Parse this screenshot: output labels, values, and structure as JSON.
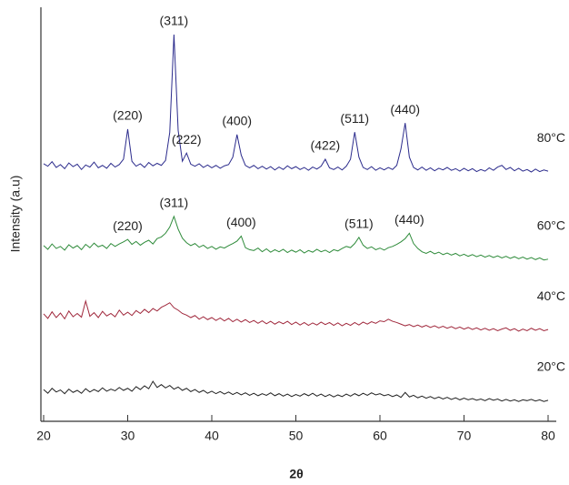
{
  "chart_data": {
    "type": "line",
    "x_label": "2θ",
    "y_label": "Intensity (a.u)",
    "xlim": [
      20,
      80
    ],
    "xticks": [
      20,
      30,
      40,
      50,
      60,
      70,
      80
    ],
    "ylim": [
      0,
      100
    ],
    "x": [
      20,
      20.5,
      21,
      21.5,
      22,
      22.5,
      23,
      23.5,
      24,
      24.5,
      25,
      25.5,
      26,
      26.5,
      27,
      27.5,
      28,
      28.5,
      29,
      29.5,
      30,
      30.5,
      31,
      31.5,
      32,
      32.5,
      33,
      33.5,
      34,
      34.5,
      35,
      35.5,
      36,
      36.5,
      37,
      37.5,
      38,
      38.5,
      39,
      39.5,
      40,
      40.5,
      41,
      41.5,
      42,
      42.5,
      43,
      43.5,
      44,
      44.5,
      45,
      45.5,
      46,
      46.5,
      47,
      47.5,
      48,
      48.5,
      49,
      49.5,
      50,
      50.5,
      51,
      51.5,
      52,
      52.5,
      53,
      53.5,
      54,
      54.5,
      55,
      55.5,
      56,
      56.5,
      57,
      57.5,
      58,
      58.5,
      59,
      59.5,
      60,
      60.5,
      61,
      61.5,
      62,
      62.5,
      63,
      63.5,
      64,
      64.5,
      65,
      65.5,
      66,
      66.5,
      67,
      67.5,
      68,
      68.5,
      69,
      69.5,
      70,
      70.5,
      71,
      71.5,
      72,
      72.5,
      73,
      73.5,
      74,
      74.5,
      75,
      75.5,
      76,
      76.5,
      77,
      77.5,
      78,
      78.5,
      79,
      79.5,
      80
    ],
    "series": [
      {
        "name": "80°C",
        "color": "#2b2b8c",
        "values": [
          62.4,
          61.8,
          62.9,
          61.5,
          62.2,
          61.2,
          62.6,
          61.7,
          62.3,
          61.0,
          62.1,
          61.6,
          62.8,
          61.4,
          62.0,
          61.3,
          62.5,
          61.6,
          62.2,
          63.5,
          70.8,
          63.0,
          61.8,
          62.4,
          61.5,
          62.7,
          61.9,
          62.5,
          62.0,
          63.2,
          70.0,
          93.8,
          70.5,
          63.0,
          65.0,
          62.3,
          61.8,
          62.4,
          61.5,
          62.1,
          61.4,
          62.0,
          61.3,
          61.9,
          62.2,
          64.0,
          69.5,
          64.5,
          62.0,
          61.4,
          62.0,
          61.2,
          61.8,
          61.1,
          61.7,
          60.9,
          61.6,
          61.0,
          61.9,
          61.2,
          61.7,
          61.0,
          61.5,
          60.8,
          61.6,
          61.1,
          61.8,
          63.5,
          61.4,
          61.0,
          61.6,
          60.9,
          61.8,
          63.5,
          70.1,
          64.0,
          61.5,
          61.0,
          61.7,
          60.8,
          61.4,
          60.9,
          61.5,
          61.0,
          62.0,
          66.0,
          72.3,
          64.0,
          61.5,
          60.9,
          61.6,
          60.8,
          61.4,
          60.7,
          61.3,
          60.9,
          61.5,
          60.8,
          61.2,
          60.6,
          61.3,
          60.7,
          61.2,
          60.5,
          61.0,
          60.6,
          61.4,
          60.8,
          61.6,
          62.0,
          61.0,
          61.5,
          60.7,
          61.3,
          60.6,
          61.0,
          60.4,
          61.1,
          60.5,
          60.9,
          60.6
        ],
        "peak_labels": [
          {
            "label": "(220)",
            "x": 30
          },
          {
            "label": "(311)",
            "x": 35.5
          },
          {
            "label": "(222)",
            "x": 37
          },
          {
            "label": "(400)",
            "x": 43
          },
          {
            "label": "(422)",
            "x": 53.5
          },
          {
            "label": "(511)",
            "x": 57
          },
          {
            "label": "(440)",
            "x": 63
          }
        ]
      },
      {
        "name": "60°C",
        "color": "#2e8b3a",
        "values": [
          42.5,
          41.6,
          42.9,
          41.8,
          42.3,
          41.4,
          42.7,
          41.9,
          42.5,
          41.5,
          42.8,
          42.0,
          43.1,
          42.2,
          42.6,
          41.8,
          43.0,
          42.3,
          42.9,
          43.4,
          44.0,
          42.8,
          43.5,
          42.6,
          43.3,
          43.8,
          42.9,
          44.2,
          44.6,
          45.5,
          47.0,
          49.6,
          46.5,
          44.3,
          43.2,
          42.5,
          43.0,
          42.1,
          42.6,
          41.8,
          42.3,
          41.6,
          42.2,
          41.9,
          42.5,
          43.0,
          43.6,
          44.8,
          42.0,
          41.5,
          41.3,
          41.9,
          41.0,
          41.7,
          40.9,
          41.5,
          41.0,
          41.6,
          40.8,
          41.4,
          40.9,
          41.5,
          40.7,
          41.3,
          40.9,
          41.6,
          41.0,
          41.4,
          40.8,
          41.5,
          41.2,
          41.8,
          42.3,
          42.0,
          43.0,
          44.5,
          42.6,
          41.8,
          42.2,
          41.5,
          41.9,
          41.4,
          42.0,
          42.3,
          42.8,
          43.4,
          44.2,
          45.5,
          43.0,
          41.8,
          41.0,
          40.6,
          41.1,
          40.5,
          40.9,
          40.3,
          40.7,
          40.2,
          40.6,
          40.0,
          40.4,
          39.9,
          40.3,
          39.8,
          40.2,
          39.7,
          40.1,
          39.6,
          40.0,
          39.5,
          39.9,
          39.4,
          39.8,
          39.3,
          39.7,
          39.2,
          39.6,
          39.1,
          39.5,
          39.0,
          39.2
        ],
        "peak_labels": [
          {
            "label": "(220)",
            "x": 30
          },
          {
            "label": "(311)",
            "x": 35.5
          },
          {
            "label": "(400)",
            "x": 43.5
          },
          {
            "label": "(511)",
            "x": 57.5
          },
          {
            "label": "(440)",
            "x": 63.5
          }
        ]
      },
      {
        "name": "40°C",
        "color": "#a0283c",
        "values": [
          25.9,
          24.8,
          26.4,
          25.0,
          26.1,
          24.7,
          26.6,
          25.2,
          26.0,
          25.1,
          29.0,
          25.3,
          26.2,
          25.0,
          26.5,
          25.4,
          26.0,
          25.2,
          26.8,
          25.6,
          26.3,
          25.5,
          26.7,
          26.0,
          27.0,
          26.2,
          27.2,
          26.6,
          27.5,
          28.0,
          28.6,
          27.4,
          26.8,
          26.0,
          25.6,
          25.0,
          25.5,
          24.6,
          25.2,
          24.5,
          25.0,
          24.3,
          24.9,
          24.2,
          24.8,
          24.0,
          24.6,
          23.9,
          24.5,
          23.8,
          24.3,
          23.6,
          24.2,
          23.5,
          24.1,
          23.4,
          24.0,
          23.5,
          24.1,
          23.3,
          23.9,
          23.2,
          23.8,
          23.1,
          23.7,
          23.2,
          23.9,
          23.3,
          23.8,
          23.1,
          23.7,
          23.0,
          23.6,
          23.1,
          23.8,
          23.2,
          23.9,
          23.4,
          24.0,
          23.6,
          24.2,
          24.0,
          24.6,
          24.1,
          23.8,
          23.4,
          23.0,
          23.3,
          22.8,
          23.2,
          22.7,
          23.1,
          22.6,
          23.0,
          22.5,
          22.9,
          22.4,
          22.8,
          22.3,
          22.7,
          22.2,
          22.6,
          22.1,
          22.5,
          22.0,
          22.4,
          21.9,
          22.3,
          21.8,
          22.2,
          22.5,
          21.9,
          22.3,
          21.7,
          22.2,
          21.8,
          22.4,
          21.9,
          22.3,
          21.8,
          22.1
        ]
      },
      {
        "name": "20°C",
        "color": "#222222",
        "values": [
          7.5,
          6.6,
          7.8,
          6.9,
          7.4,
          6.5,
          7.6,
          6.8,
          7.3,
          6.6,
          7.7,
          6.9,
          7.5,
          7.0,
          7.9,
          7.1,
          7.6,
          7.2,
          8.0,
          7.3,
          7.8,
          7.1,
          8.2,
          7.5,
          8.4,
          7.7,
          9.5,
          8.0,
          8.7,
          7.9,
          8.5,
          7.6,
          8.1,
          7.3,
          7.8,
          7.0,
          7.5,
          6.8,
          7.3,
          6.6,
          7.1,
          6.5,
          7.0,
          6.4,
          6.9,
          6.3,
          6.8,
          6.2,
          6.7,
          6.1,
          6.6,
          6.0,
          6.5,
          6.1,
          6.7,
          6.0,
          6.5,
          5.9,
          6.4,
          5.8,
          6.3,
          5.9,
          6.5,
          6.0,
          6.6,
          5.9,
          6.4,
          5.8,
          6.3,
          5.7,
          6.2,
          5.8,
          6.4,
          5.9,
          6.5,
          6.0,
          6.6,
          6.1,
          6.7,
          6.2,
          6.5,
          6.0,
          6.3,
          5.8,
          6.2,
          5.6,
          6.8,
          5.7,
          6.1,
          5.5,
          5.9,
          5.4,
          5.8,
          5.3,
          5.7,
          5.2,
          5.6,
          5.1,
          5.5,
          5.0,
          5.4,
          5.0,
          5.3,
          4.9,
          5.2,
          4.8,
          5.3,
          4.9,
          5.2,
          4.7,
          5.1,
          4.7,
          5.0,
          4.6,
          5.0,
          4.8,
          5.1,
          4.7,
          5.0,
          4.6,
          4.9
        ]
      }
    ]
  }
}
